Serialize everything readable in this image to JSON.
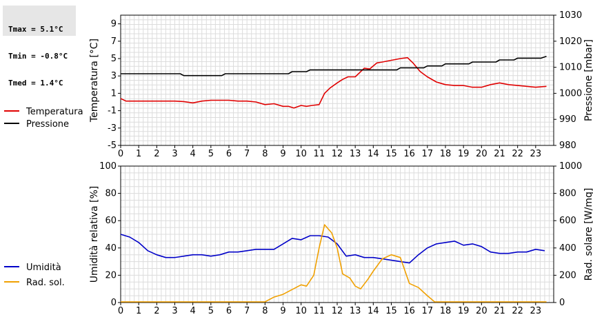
{
  "stats": [
    {
      "label": "Tmax",
      "value": "5.1°C"
    },
    {
      "label": "Tmin",
      "value": "-0.8°C"
    },
    {
      "label": "Tmed",
      "value": "1.4°C"
    }
  ],
  "chart_data": [
    {
      "type": "line",
      "xlim": [
        0,
        24
      ],
      "x_ticks": [
        "0",
        "1",
        "2",
        "3",
        "4",
        "5",
        "6",
        "7",
        "8",
        "9",
        "10",
        "11",
        "12",
        "13",
        "14",
        "15",
        "16",
        "17",
        "18",
        "19",
        "20",
        "21",
        "22",
        "23"
      ],
      "ylabel": "Temperatura [°C]",
      "y_ticks": [
        "9",
        "7",
        "5",
        "3",
        "1",
        "-1",
        "-3",
        "-5"
      ],
      "ylim": [
        -5,
        10
      ],
      "y2label": "Pressione [mbar]",
      "y2_ticks": [
        "1030",
        "1020",
        "1010",
        "1000",
        "990",
        "980"
      ],
      "y2lim": [
        980,
        1030
      ],
      "grid": true,
      "legend_position": "left",
      "series": [
        {
          "name": "Temperatura",
          "color": "#e00000",
          "axis": "left",
          "points": [
            [
              0,
              0.4
            ],
            [
              0.3,
              0.1
            ],
            [
              1,
              0.1
            ],
            [
              2,
              0.1
            ],
            [
              3,
              0.1
            ],
            [
              3.5,
              0.05
            ],
            [
              4,
              -0.1
            ],
            [
              4.5,
              0.1
            ],
            [
              5,
              0.2
            ],
            [
              5.5,
              0.2
            ],
            [
              6,
              0.2
            ],
            [
              6.5,
              0.1
            ],
            [
              7,
              0.1
            ],
            [
              7.5,
              0.0
            ],
            [
              8,
              -0.3
            ],
            [
              8.5,
              -0.2
            ],
            [
              9,
              -0.5
            ],
            [
              9.3,
              -0.5
            ],
            [
              9.6,
              -0.7
            ],
            [
              10,
              -0.4
            ],
            [
              10.3,
              -0.5
            ],
            [
              10.6,
              -0.4
            ],
            [
              11,
              -0.3
            ],
            [
              11.3,
              1.0
            ],
            [
              11.6,
              1.6
            ],
            [
              12,
              2.2
            ],
            [
              12.3,
              2.6
            ],
            [
              12.6,
              2.9
            ],
            [
              13,
              2.9
            ],
            [
              13.5,
              3.9
            ],
            [
              13.8,
              3.8
            ],
            [
              14.2,
              4.5
            ],
            [
              14.5,
              4.6
            ],
            [
              15,
              4.8
            ],
            [
              15.5,
              5.0
            ],
            [
              15.9,
              5.1
            ],
            [
              16.2,
              4.5
            ],
            [
              16.6,
              3.5
            ],
            [
              17,
              2.9
            ],
            [
              17.5,
              2.3
            ],
            [
              18,
              2.0
            ],
            [
              18.5,
              1.9
            ],
            [
              19,
              1.9
            ],
            [
              19.5,
              1.7
            ],
            [
              20,
              1.7
            ],
            [
              20.5,
              2.0
            ],
            [
              21,
              2.2
            ],
            [
              21.5,
              2.0
            ],
            [
              22,
              1.9
            ],
            [
              22.5,
              1.8
            ],
            [
              23,
              1.7
            ],
            [
              23.6,
              1.8
            ]
          ]
        },
        {
          "name": "Pressione",
          "color": "#000000",
          "axis": "right",
          "points": [
            [
              0,
              1007.5
            ],
            [
              3.3,
              1007.5
            ],
            [
              3.5,
              1006.8
            ],
            [
              5.6,
              1006.8
            ],
            [
              5.8,
              1007.5
            ],
            [
              9.3,
              1007.5
            ],
            [
              9.5,
              1008.3
            ],
            [
              10.3,
              1008.3
            ],
            [
              10.5,
              1009.0
            ],
            [
              15.3,
              1009.0
            ],
            [
              15.5,
              1009.8
            ],
            [
              16.8,
              1009.8
            ],
            [
              17,
              1010.5
            ],
            [
              17.8,
              1010.5
            ],
            [
              18,
              1011.3
            ],
            [
              19.3,
              1011.3
            ],
            [
              19.5,
              1012.0
            ],
            [
              20.8,
              1012.0
            ],
            [
              21,
              1012.8
            ],
            [
              21.8,
              1012.8
            ],
            [
              22,
              1013.5
            ],
            [
              23.3,
              1013.5
            ],
            [
              23.6,
              1014.2
            ]
          ]
        }
      ]
    },
    {
      "type": "line",
      "xlim": [
        0,
        24
      ],
      "x_ticks": [
        "0",
        "1",
        "2",
        "3",
        "4",
        "5",
        "6",
        "7",
        "8",
        "9",
        "10",
        "11",
        "12",
        "13",
        "14",
        "15",
        "16",
        "17",
        "18",
        "19",
        "20",
        "21",
        "22",
        "23"
      ],
      "ylabel": "Umidità relativa [%]",
      "y_ticks": [
        "100",
        "80",
        "60",
        "40",
        "20",
        "0"
      ],
      "ylim": [
        0,
        100
      ],
      "y2label": "Rad. solare [W/mq]",
      "y2_ticks": [
        "1000",
        "800",
        "600",
        "400",
        "200",
        "0"
      ],
      "y2lim": [
        0,
        1000
      ],
      "grid": true,
      "legend_position": "left",
      "series": [
        {
          "name": "Umidità",
          "color": "#0000c8",
          "axis": "left",
          "points": [
            [
              0,
              50
            ],
            [
              0.5,
              48
            ],
            [
              1,
              44
            ],
            [
              1.5,
              38
            ],
            [
              2,
              35
            ],
            [
              2.5,
              33
            ],
            [
              3,
              33
            ],
            [
              3.5,
              34
            ],
            [
              4,
              35
            ],
            [
              4.5,
              35
            ],
            [
              5,
              34
            ],
            [
              5.5,
              35
            ],
            [
              6,
              37
            ],
            [
              6.5,
              37
            ],
            [
              7,
              38
            ],
            [
              7.5,
              39
            ],
            [
              8,
              39
            ],
            [
              8.5,
              39
            ],
            [
              9,
              43
            ],
            [
              9.5,
              47
            ],
            [
              10,
              46
            ],
            [
              10.5,
              49
            ],
            [
              11,
              49
            ],
            [
              11.5,
              48
            ],
            [
              12,
              43
            ],
            [
              12.5,
              34
            ],
            [
              13,
              35
            ],
            [
              13.5,
              33
            ],
            [
              14,
              33
            ],
            [
              14.5,
              32
            ],
            [
              15,
              31
            ],
            [
              15.5,
              30
            ],
            [
              16,
              29
            ],
            [
              16.5,
              35
            ],
            [
              17,
              40
            ],
            [
              17.5,
              43
            ],
            [
              18,
              44
            ],
            [
              18.5,
              45
            ],
            [
              19,
              42
            ],
            [
              19.5,
              43
            ],
            [
              20,
              41
            ],
            [
              20.5,
              37
            ],
            [
              21,
              36
            ],
            [
              21.5,
              36
            ],
            [
              22,
              37
            ],
            [
              22.5,
              37
            ],
            [
              23,
              39
            ],
            [
              23.5,
              38
            ]
          ]
        },
        {
          "name": "Rad. sol.",
          "color": "#f0a000",
          "axis": "right",
          "points": [
            [
              0,
              5
            ],
            [
              8,
              5
            ],
            [
              8.5,
              40
            ],
            [
              9,
              60
            ],
            [
              9.5,
              95
            ],
            [
              10,
              130
            ],
            [
              10.3,
              120
            ],
            [
              10.7,
              200
            ],
            [
              11,
              400
            ],
            [
              11.3,
              570
            ],
            [
              11.7,
              510
            ],
            [
              12,
              400
            ],
            [
              12.3,
              210
            ],
            [
              12.7,
              180
            ],
            [
              13,
              120
            ],
            [
              13.3,
              100
            ],
            [
              13.7,
              170
            ],
            [
              14,
              230
            ],
            [
              14.5,
              320
            ],
            [
              15,
              350
            ],
            [
              15.5,
              330
            ],
            [
              16,
              140
            ],
            [
              16.5,
              110
            ],
            [
              17,
              50
            ],
            [
              17.4,
              5
            ],
            [
              23.6,
              5
            ]
          ]
        }
      ]
    }
  ]
}
